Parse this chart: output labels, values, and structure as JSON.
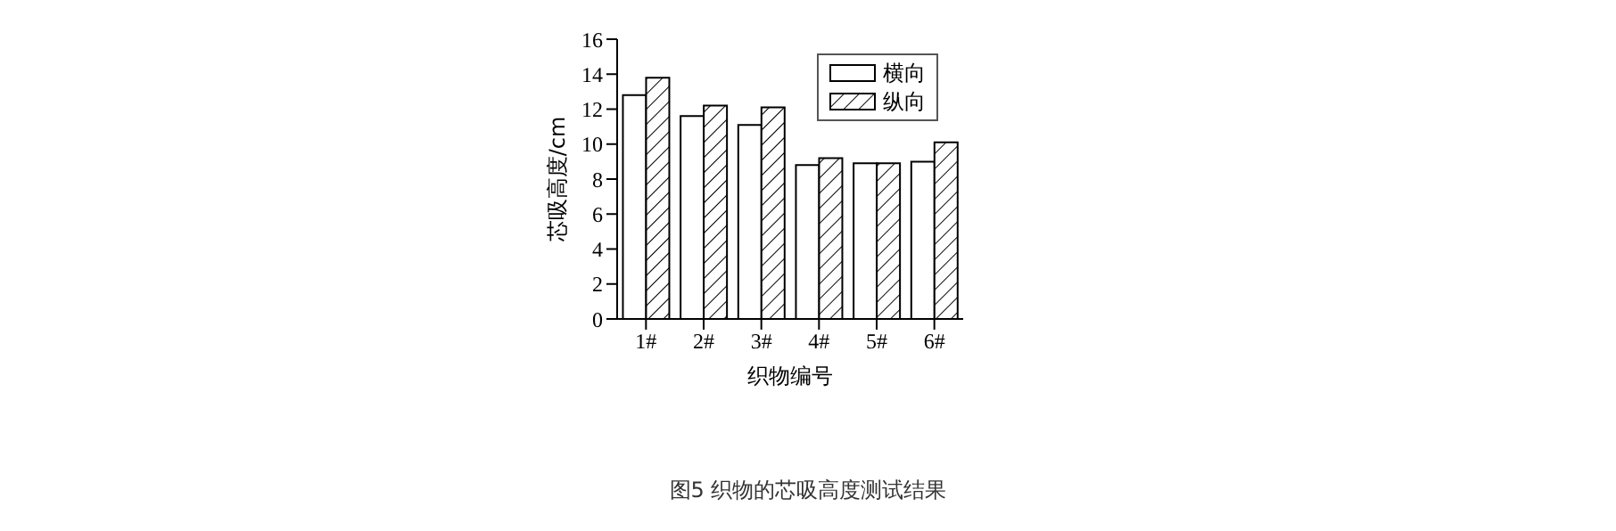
{
  "chart_data": {
    "type": "bar",
    "xlabel": "织物编号",
    "ylabel": "芯吸高度/cm",
    "annotations": [
      "图5 织物的芯吸高度测试结果"
    ],
    "categories": [
      "1#",
      "2#",
      "3#",
      "4#",
      "5#",
      "6#"
    ],
    "series": [
      {
        "name": "横向",
        "color": "#ffffff",
        "values": [
          12.8,
          11.6,
          11.1,
          8.8,
          8.9,
          9.0
        ]
      },
      {
        "name": "纵向",
        "color": "#000000",
        "values": [
          13.8,
          12.2,
          12.1,
          9.2,
          8.9,
          10.1
        ]
      }
    ],
    "ylim": [
      0,
      16
    ],
    "yticks": [
      0,
      2,
      4,
      6,
      8,
      10,
      12,
      14,
      16
    ],
    "grid": false,
    "legend": "top right"
  }
}
